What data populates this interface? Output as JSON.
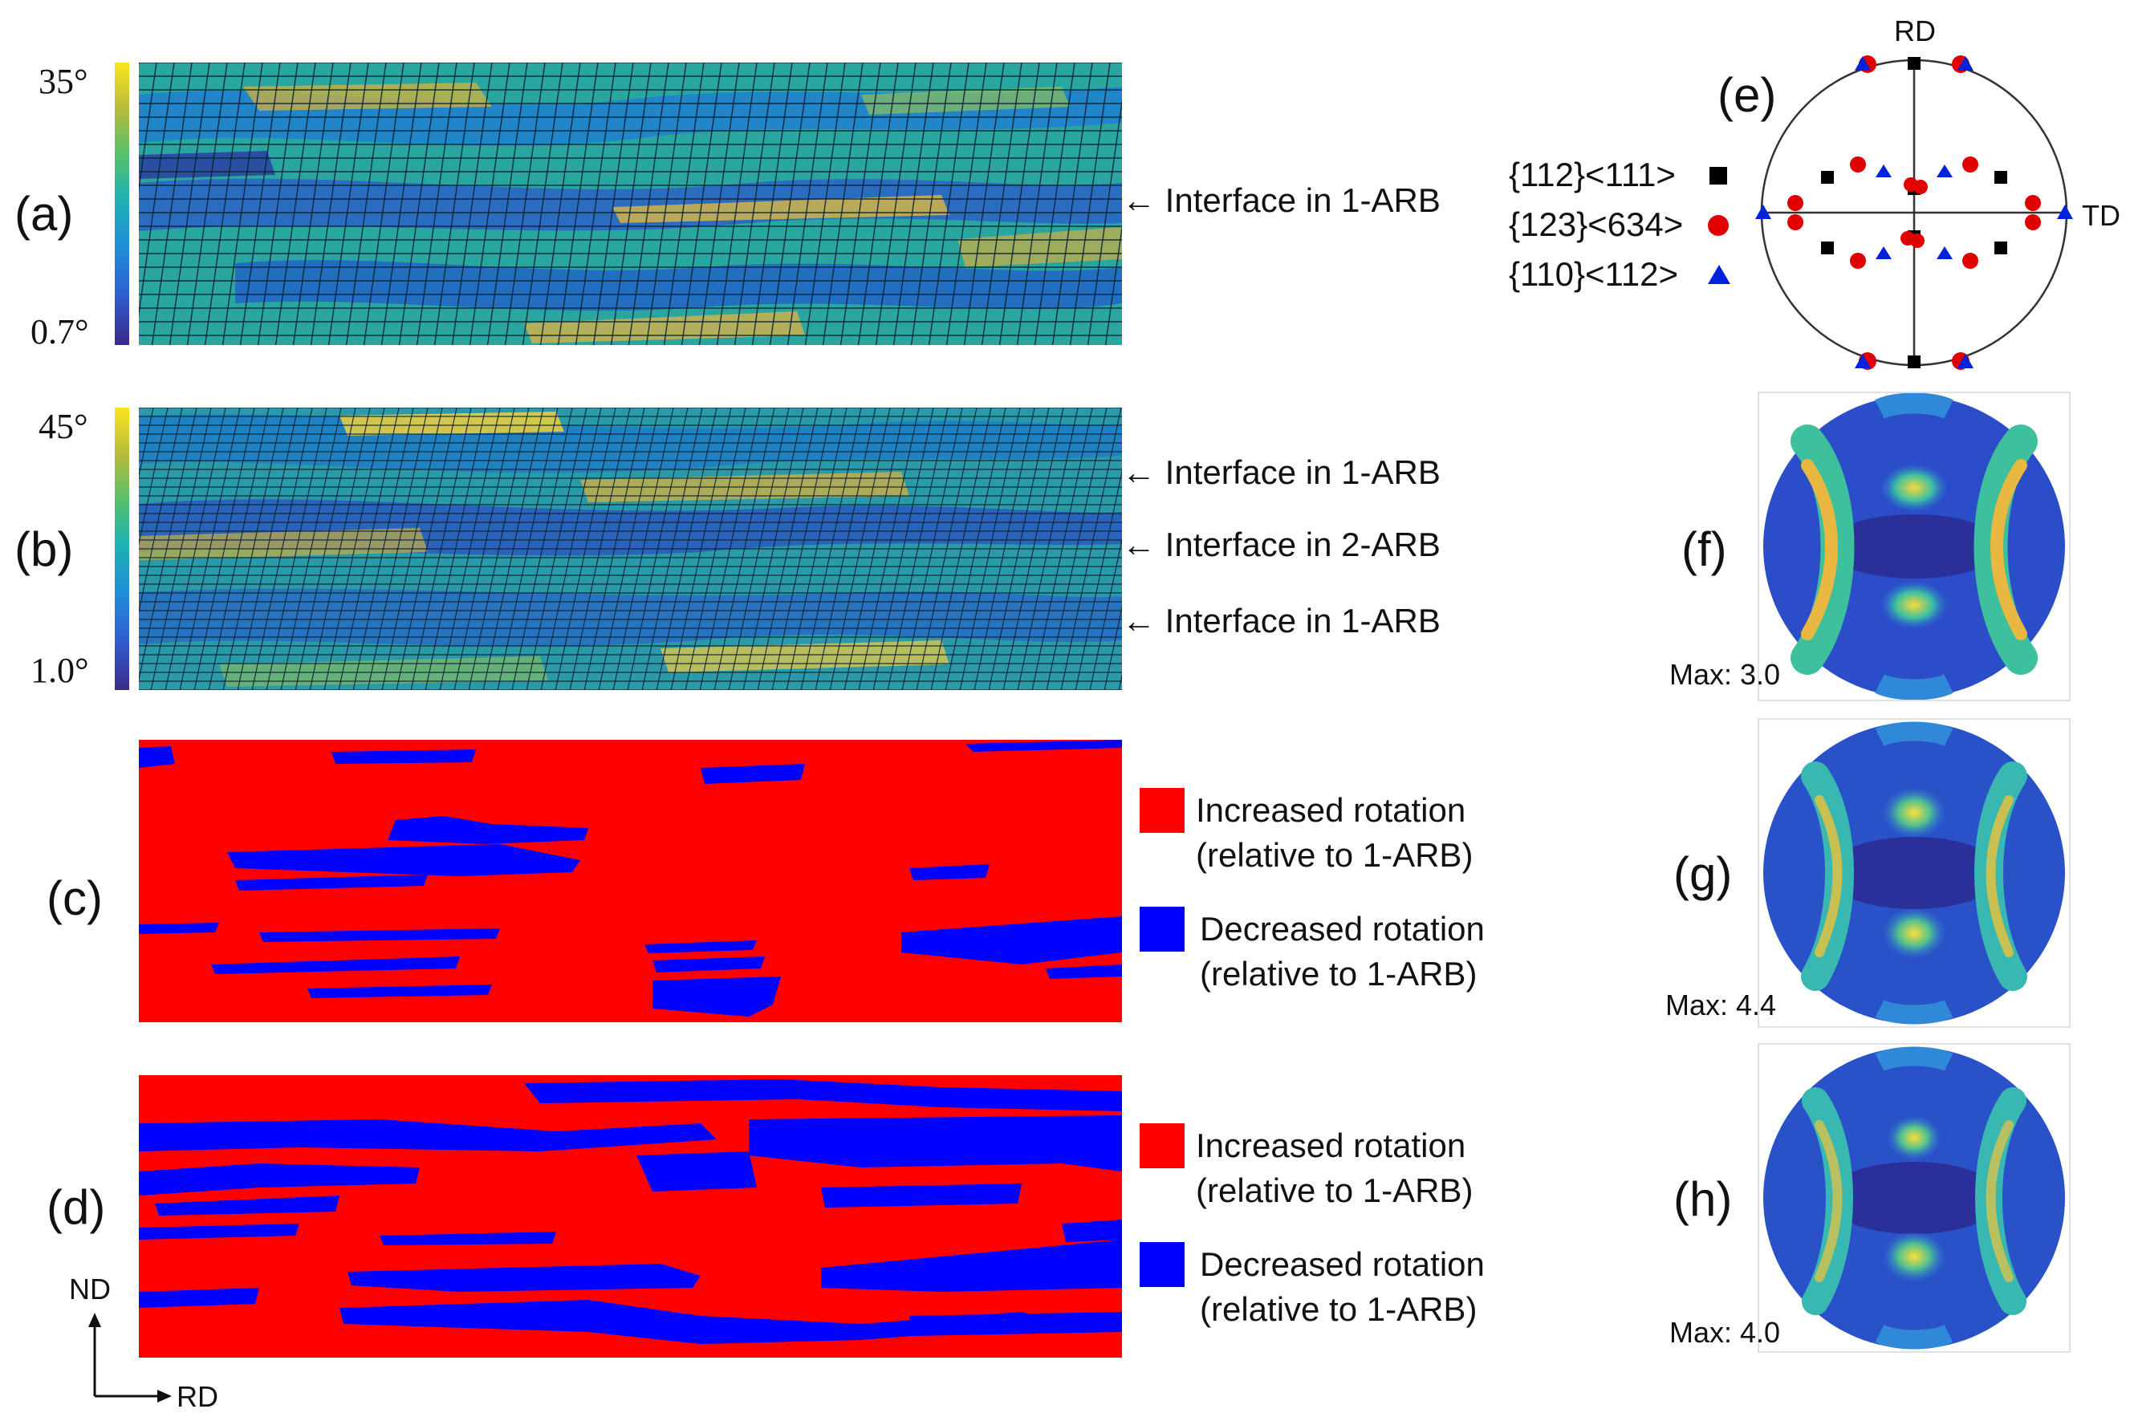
{
  "panels": {
    "a": {
      "label": "(a)",
      "colorbar": {
        "max": "35°",
        "min": "0.7°"
      },
      "annotations": [
        "Interface in 1-ARB"
      ]
    },
    "b": {
      "label": "(b)",
      "colorbar": {
        "max": "45°",
        "min": "1.0°"
      },
      "annotations": [
        "Interface in 1-ARB",
        "Interface in 2-ARB",
        "Interface in 1-ARB"
      ]
    },
    "c": {
      "label": "(c)",
      "legend": [
        {
          "color": "#ff0000",
          "line1": "Increased rotation",
          "line2": "(relative to 1-ARB)"
        },
        {
          "color": "#0000ff",
          "line1": "Decreased rotation",
          "line2": "(relative to 1-ARB)"
        }
      ]
    },
    "d": {
      "label": "(d)",
      "legend": [
        {
          "color": "#ff0000",
          "line1": "Increased rotation",
          "line2": "(relative to 1-ARB)"
        },
        {
          "color": "#0000ff",
          "line1": "Decreased rotation",
          "line2": "(relative to 1-ARB)"
        }
      ]
    },
    "e": {
      "label": "(e)",
      "axis_top": "RD",
      "axis_right": "TD",
      "legend": [
        {
          "text": "{112}<111>",
          "marker": "square",
          "color": "#000000"
        },
        {
          "text": "{123}<634>",
          "marker": "circle",
          "color": "#e00000"
        },
        {
          "text": "{110}<112>",
          "marker": "triangle",
          "color": "#0022dd"
        }
      ]
    },
    "f": {
      "label": "(f)",
      "max": "Max: 3.0"
    },
    "g": {
      "label": "(g)",
      "max": "Max: 4.4"
    },
    "h": {
      "label": "(h)",
      "max": "Max: 4.0"
    }
  },
  "axes_indicator": {
    "vertical": "ND",
    "horizontal": "RD"
  },
  "colors": {
    "increased": "#ff0000",
    "decreased": "#0000ff",
    "text": "#111111"
  }
}
